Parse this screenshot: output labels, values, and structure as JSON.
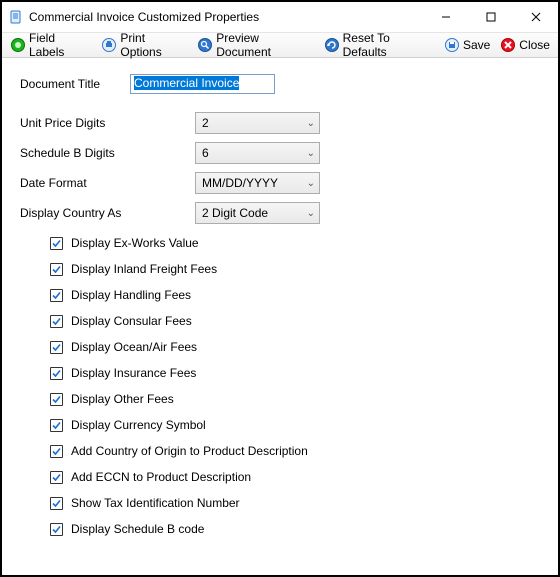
{
  "window": {
    "title": "Commercial Invoice Customized Properties"
  },
  "toolbar": {
    "field_labels": "Field Labels",
    "print_options": "Print Options",
    "preview_document": "Preview Document",
    "reset_defaults": "Reset To Defaults",
    "save": "Save",
    "close": "Close"
  },
  "form": {
    "doc_title_label": "Document Title",
    "doc_title_value": "Commercial Invoice",
    "unit_price_label": "Unit Price Digits",
    "unit_price_value": "2",
    "schedule_b_label": "Schedule B Digits",
    "schedule_b_value": "6",
    "date_format_label": "Date Format",
    "date_format_value": "MM/DD/YYYY",
    "display_country_label": "Display Country As",
    "display_country_value": "2 Digit Code"
  },
  "checks": [
    "Display Ex-Works Value",
    "Display Inland Freight Fees",
    "Display Handling Fees",
    "Display Consular Fees",
    "Display Ocean/Air Fees",
    "Display Insurance Fees",
    "Display Other Fees",
    "Display Currency Symbol",
    "Add Country of Origin to Product Description",
    "Add ECCN to Product Description",
    "Show Tax Identification Number",
    "Display Schedule B code"
  ],
  "colors": {
    "accent_blue": "#0078d7",
    "check_stroke": "#1a6fd6",
    "close_red": "#e81123",
    "toolbar_green": "#1ab51a",
    "toolbar_blue": "#2f78d0"
  }
}
